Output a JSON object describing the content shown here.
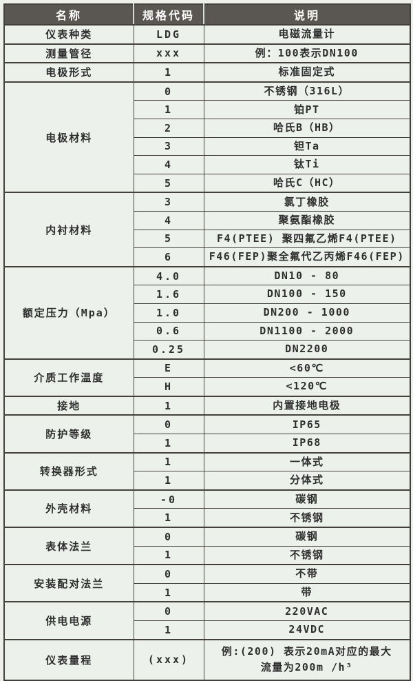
{
  "theme": {
    "header_bg": "#5a5651",
    "header_text": "#ffffff",
    "body_bg": "#edf1ec",
    "border": "#44413d",
    "text": "#2f2f2f"
  },
  "table": {
    "headers": [
      "名称",
      "规格代码",
      "说明"
    ],
    "groups": [
      {
        "name": "仪表种类",
        "rows": [
          {
            "code": "LDG",
            "desc": "电磁流量计"
          }
        ]
      },
      {
        "name": "测量管径",
        "rows": [
          {
            "code": "xxx",
            "desc": "例：100表示DN100"
          }
        ]
      },
      {
        "name": "电极形式",
        "rows": [
          {
            "code": "1",
            "desc": "标准固定式"
          }
        ]
      },
      {
        "name": "电极材料",
        "rows": [
          {
            "code": "0",
            "desc": "不锈钢（316L）"
          },
          {
            "code": "1",
            "desc": "铂PT"
          },
          {
            "code": "2",
            "desc": "哈氏B（HB）"
          },
          {
            "code": "3",
            "desc": "钽Ta"
          },
          {
            "code": "4",
            "desc": "钛Ti"
          },
          {
            "code": "5",
            "desc": "哈氏C（HC）"
          }
        ]
      },
      {
        "name": "内衬材料",
        "rows": [
          {
            "code": "3",
            "desc": "氯丁橡胶"
          },
          {
            "code": "4",
            "desc": "聚氨酯橡胶"
          },
          {
            "code": "5",
            "desc": "F4(PTEE) 聚四氟乙烯F4(PTEE)"
          },
          {
            "code": "6",
            "desc": "F46(FEP)聚全氟代乙丙烯F46(FEP)"
          }
        ]
      },
      {
        "name": "额定压力（Mpa）",
        "rows": [
          {
            "code": "4.0",
            "desc": "DN10 - 80"
          },
          {
            "code": "1.6",
            "desc": "DN100 - 150"
          },
          {
            "code": "1.0",
            "desc": "DN200 - 1000"
          },
          {
            "code": "0.6",
            "desc": "DN1100 - 2000"
          },
          {
            "code": "0.25",
            "desc": "DN2200"
          }
        ]
      },
      {
        "name": "介质工作温度",
        "rows": [
          {
            "code": "E",
            "desc": "<60℃"
          },
          {
            "code": "H",
            "desc": "<120℃"
          }
        ]
      },
      {
        "name": "接地",
        "rows": [
          {
            "code": "1",
            "desc": "内置接地电极"
          }
        ]
      },
      {
        "name": "防护等级",
        "rows": [
          {
            "code": "0",
            "desc": "IP65"
          },
          {
            "code": "1",
            "desc": "IP68"
          }
        ]
      },
      {
        "name": "转换器形式",
        "rows": [
          {
            "code": "1",
            "desc": "一体式"
          },
          {
            "code": "1",
            "desc": "分体式"
          }
        ]
      },
      {
        "name": "外壳材料",
        "rows": [
          {
            "code": "-0",
            "desc": "碳钢"
          },
          {
            "code": "1",
            "desc": "不锈钢"
          }
        ]
      },
      {
        "name": "表体法兰",
        "rows": [
          {
            "code": "0",
            "desc": "碳钢"
          },
          {
            "code": "1",
            "desc": "不锈钢"
          }
        ]
      },
      {
        "name": "安装配对法兰",
        "rows": [
          {
            "code": "0",
            "desc": "不带"
          },
          {
            "code": "1",
            "desc": "带"
          }
        ]
      },
      {
        "name": "供电电源",
        "rows": [
          {
            "code": "0",
            "desc": "220VAC"
          },
          {
            "code": "1",
            "desc": "24VDC"
          }
        ]
      },
      {
        "name": "仪表量程",
        "rows": [
          {
            "code": "(xxx)",
            "desc": "例:(200) 表示20mA对应的最大\n流量为200m /h³",
            "tall": true
          }
        ]
      }
    ]
  }
}
